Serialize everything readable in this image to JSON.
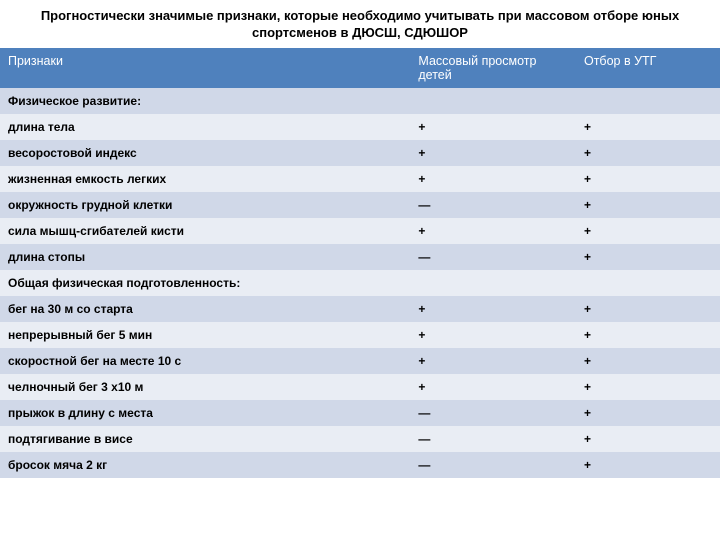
{
  "title": "Прогностически значимые признаки, которые необходимо учитывать при массовом отборе юных спортсменов в ДЮСШ, СДЮШОР",
  "columns": [
    "Признаки",
    "Массовый просмотр детей",
    "Отбор в УТГ"
  ],
  "colors": {
    "header_bg": "#4f81bd",
    "header_text": "#ffffff",
    "row_odd": "#d0d8e8",
    "row_even": "#e9edf4",
    "text": "#000000"
  },
  "column_widths_pct": [
    57,
    23,
    20
  ],
  "font_sizes": {
    "title": 13,
    "header": 12.5,
    "body": 12
  },
  "rows": [
    {
      "type": "section",
      "cells": [
        "Физическое развитие:",
        "",
        ""
      ]
    },
    {
      "type": "data",
      "cells": [
        "длина тела",
        "+",
        "+"
      ]
    },
    {
      "type": "data",
      "cells": [
        "весоростовой индекс",
        "+",
        "+"
      ]
    },
    {
      "type": "data",
      "cells": [
        "жизненная емкость легких",
        "+",
        "+"
      ]
    },
    {
      "type": "data",
      "cells": [
        "окружность грудной клетки",
        "—",
        "+"
      ]
    },
    {
      "type": "data",
      "cells": [
        "сила мышц-сгибателей кисти",
        "+",
        "+"
      ]
    },
    {
      "type": "data",
      "cells": [
        "длина стопы",
        "—",
        "+"
      ]
    },
    {
      "type": "section",
      "cells": [
        "Общая физическая подготовленность:",
        "",
        ""
      ]
    },
    {
      "type": "data",
      "cells": [
        "бег на 30 м со старта",
        "+",
        "+"
      ]
    },
    {
      "type": "data",
      "cells": [
        "непрерывный бег 5 мин",
        "+",
        "+"
      ]
    },
    {
      "type": "data",
      "cells": [
        "скоростной бег на месте 10 с",
        "+",
        "+"
      ]
    },
    {
      "type": "data",
      "cells": [
        "челночный бег 3 х10 м",
        "+",
        "+"
      ]
    },
    {
      "type": "data",
      "cells": [
        "прыжок в длину с места",
        "—",
        "+"
      ]
    },
    {
      "type": "data",
      "cells": [
        "подтягивание в висе",
        "—",
        "+"
      ]
    },
    {
      "type": "data",
      "cells": [
        "бросок мяча 2 кг",
        "—",
        "+"
      ]
    }
  ]
}
